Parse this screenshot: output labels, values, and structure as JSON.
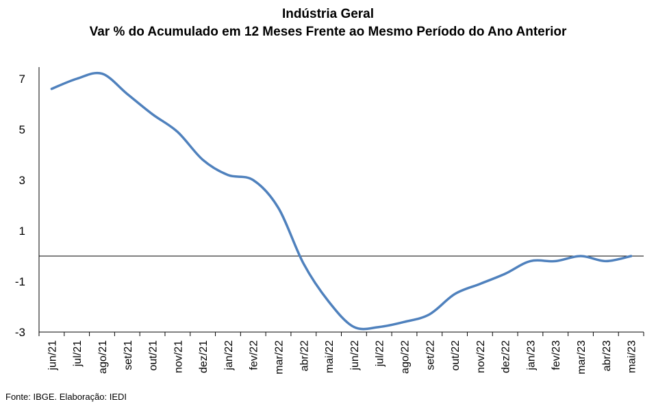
{
  "chart_data": {
    "type": "line",
    "title": "Indústria Geral",
    "subtitle": "Var % do Acumulado em 12 Meses Frente ao Mesmo Período do Ano Anterior",
    "xlabel": "",
    "ylabel": "",
    "categories": [
      "jun/21",
      "jul/21",
      "ago/21",
      "set/21",
      "out/21",
      "nov/21",
      "dez/21",
      "jan/22",
      "fev/22",
      "mar/22",
      "abr/22",
      "mai/22",
      "jun/22",
      "jul/22",
      "ago/22",
      "set/22",
      "out/22",
      "nov/22",
      "dez/22",
      "jan/23",
      "fev/23",
      "mar/23",
      "abr/23",
      "mai/23"
    ],
    "series": [
      {
        "color": "#4f81bd",
        "values": [
          6.6,
          7.0,
          7.2,
          6.4,
          5.6,
          4.9,
          3.8,
          3.2,
          3.0,
          1.9,
          -0.3,
          -1.8,
          -2.8,
          -2.8,
          -2.6,
          -2.3,
          -1.5,
          -1.1,
          -0.7,
          -0.2,
          -0.2,
          0.0,
          -0.2,
          0.0
        ]
      }
    ],
    "yticks": [
      7,
      5,
      3,
      1,
      -1,
      -3
    ],
    "ylim": [
      -3,
      7.8
    ],
    "grid": false,
    "legend": "none",
    "zero_line": true,
    "axis_color": "#000000"
  },
  "source_note": "Fonte: IBGE. Elaboração: IEDI"
}
